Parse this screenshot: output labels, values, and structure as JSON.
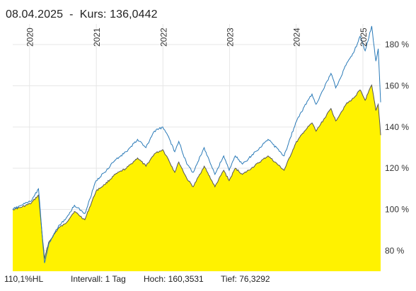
{
  "header": {
    "date": "08.04.2025",
    "separator": "-",
    "price_label": "Kurs:",
    "price_value": "136,0442"
  },
  "footer": {
    "range": "110,1%HL",
    "interval": "Intervall: 1 Tag",
    "high": "Hoch: 160,3531",
    "low": "Tief: 76,3292"
  },
  "colors": {
    "area_fill": "#fff200",
    "area_line": "#555555",
    "comparison_line": "#2a7ab8",
    "grid": "#e6e6e6"
  },
  "chart_data": {
    "type": "area",
    "title": "",
    "xlabel": "",
    "ylabel": "",
    "x_range": [
      "2019-10-01",
      "2025-04-08"
    ],
    "ylim": [
      70,
      190
    ],
    "y_ticks": [
      80,
      100,
      120,
      140,
      160,
      180
    ],
    "y_tick_labels": [
      "80 %",
      "100 %",
      "120 %",
      "140 %",
      "160 %",
      "180 %"
    ],
    "x_ticks": [
      {
        "label": "2020",
        "date": "2020-01-01"
      },
      {
        "label": "2021",
        "date": "2021-01-01"
      },
      {
        "label": "2022",
        "date": "2022-01-01"
      },
      {
        "label": "2023",
        "date": "2023-01-01"
      },
      {
        "label": "2024",
        "date": "2024-01-01"
      },
      {
        "label": "2025",
        "date": "2025-01-01"
      }
    ],
    "grid": true,
    "series": [
      {
        "style": "line",
        "points": [
          [
            "2019-10-01",
            100
          ],
          [
            "2019-11-15",
            102
          ],
          [
            "2020-01-10",
            104
          ],
          [
            "2020-02-19",
            110
          ],
          [
            "2020-03-23",
            74
          ],
          [
            "2020-04-15",
            83
          ],
          [
            "2020-06-08",
            92
          ],
          [
            "2020-07-15",
            95
          ],
          [
            "2020-09-03",
            102
          ],
          [
            "2020-10-30",
            98
          ],
          [
            "2020-12-31",
            114
          ],
          [
            "2021-02-15",
            118
          ],
          [
            "2021-04-15",
            124
          ],
          [
            "2021-06-15",
            128
          ],
          [
            "2021-08-15",
            134
          ],
          [
            "2021-09-30",
            130
          ],
          [
            "2021-11-15",
            138
          ],
          [
            "2021-12-31",
            140
          ],
          [
            "2022-01-27",
            136
          ],
          [
            "2022-03-07",
            128
          ],
          [
            "2022-03-29",
            133
          ],
          [
            "2022-05-12",
            122
          ],
          [
            "2022-06-16",
            118
          ],
          [
            "2022-08-15",
            130
          ],
          [
            "2022-10-13",
            117
          ],
          [
            "2022-11-30",
            126
          ],
          [
            "2022-12-30",
            119
          ],
          [
            "2023-02-02",
            126
          ],
          [
            "2023-03-13",
            122
          ],
          [
            "2023-05-01",
            126
          ],
          [
            "2023-07-31",
            134
          ],
          [
            "2023-10-27",
            126
          ],
          [
            "2023-12-29",
            142
          ],
          [
            "2024-02-15",
            150
          ],
          [
            "2024-03-28",
            156
          ],
          [
            "2024-04-19",
            151
          ],
          [
            "2024-07-10",
            166
          ],
          [
            "2024-08-05",
            159
          ],
          [
            "2024-09-30",
            170
          ],
          [
            "2024-11-11",
            176
          ],
          [
            "2024-12-16",
            184
          ],
          [
            "2025-01-13",
            177
          ],
          [
            "2025-02-18",
            189
          ],
          [
            "2025-03-13",
            172
          ],
          [
            "2025-03-26",
            178
          ],
          [
            "2025-04-04",
            160
          ],
          [
            "2025-04-08",
            152
          ]
        ]
      },
      {
        "style": "area",
        "points": [
          [
            "2019-10-01",
            100
          ],
          [
            "2019-11-15",
            101
          ],
          [
            "2020-01-10",
            103
          ],
          [
            "2020-02-19",
            107
          ],
          [
            "2020-03-23",
            76
          ],
          [
            "2020-04-15",
            84
          ],
          [
            "2020-06-08",
            91
          ],
          [
            "2020-07-15",
            93
          ],
          [
            "2020-09-03",
            99
          ],
          [
            "2020-10-30",
            95
          ],
          [
            "2020-12-31",
            109
          ],
          [
            "2021-02-15",
            112
          ],
          [
            "2021-04-15",
            117
          ],
          [
            "2021-06-15",
            120
          ],
          [
            "2021-08-15",
            125
          ],
          [
            "2021-09-30",
            121
          ],
          [
            "2021-11-15",
            127
          ],
          [
            "2021-12-31",
            129
          ],
          [
            "2022-01-27",
            125
          ],
          [
            "2022-03-07",
            118
          ],
          [
            "2022-03-29",
            123
          ],
          [
            "2022-05-12",
            115
          ],
          [
            "2022-06-16",
            111
          ],
          [
            "2022-08-15",
            121
          ],
          [
            "2022-10-13",
            111
          ],
          [
            "2022-11-30",
            119
          ],
          [
            "2022-12-30",
            114
          ],
          [
            "2023-02-02",
            120
          ],
          [
            "2023-03-13",
            117
          ],
          [
            "2023-05-01",
            120
          ],
          [
            "2023-07-31",
            126
          ],
          [
            "2023-10-27",
            119
          ],
          [
            "2023-12-29",
            132
          ],
          [
            "2024-02-15",
            138
          ],
          [
            "2024-03-28",
            142
          ],
          [
            "2024-04-19",
            138
          ],
          [
            "2024-07-10",
            149
          ],
          [
            "2024-08-05",
            143
          ],
          [
            "2024-09-30",
            151
          ],
          [
            "2024-11-11",
            154
          ],
          [
            "2024-12-16",
            158
          ],
          [
            "2025-01-13",
            153
          ],
          [
            "2025-02-18",
            160.35
          ],
          [
            "2025-03-13",
            148
          ],
          [
            "2025-03-26",
            151
          ],
          [
            "2025-04-04",
            141
          ],
          [
            "2025-04-08",
            136.04
          ]
        ]
      }
    ]
  }
}
